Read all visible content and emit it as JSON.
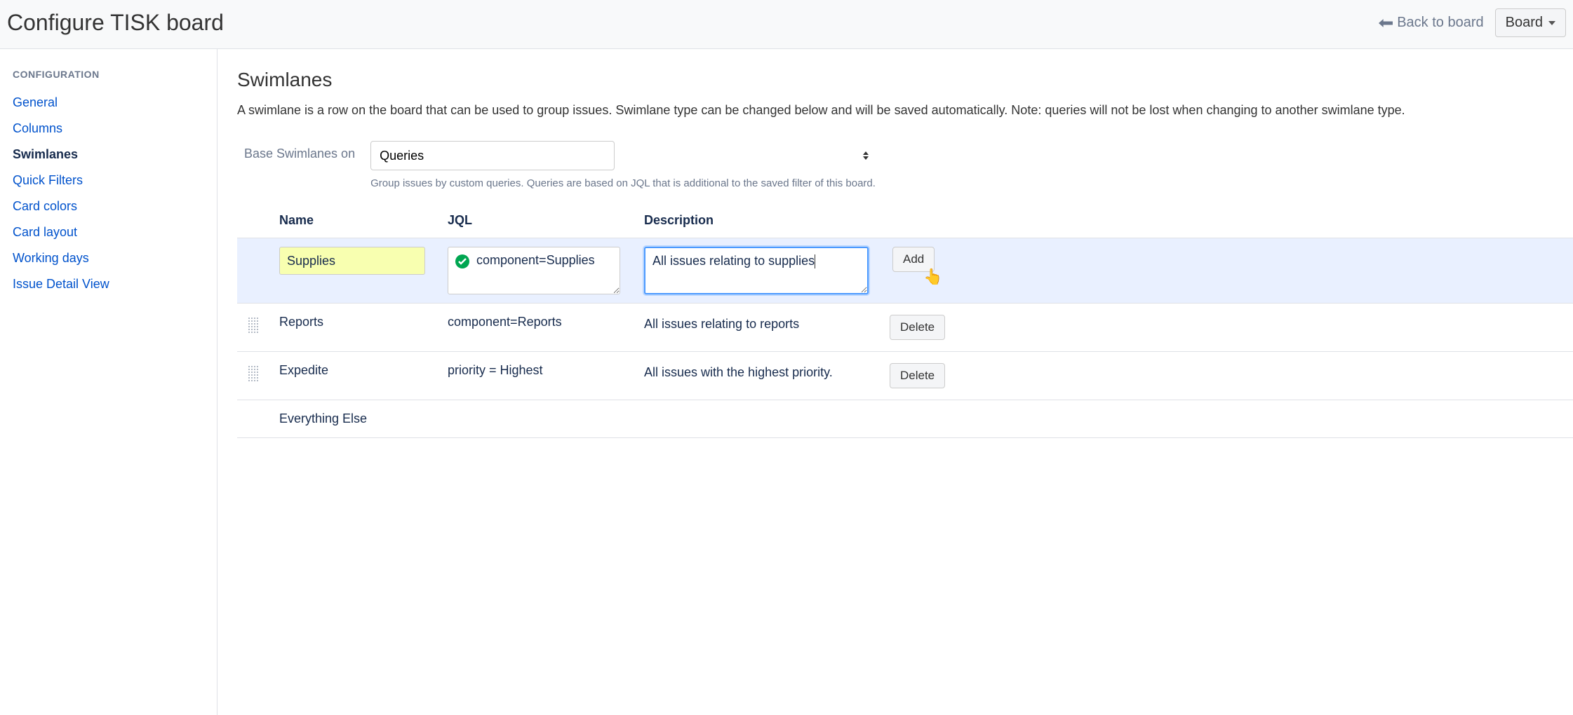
{
  "header": {
    "title": "Configure TISK board",
    "back_label": "Back to board",
    "board_button": "Board"
  },
  "sidebar": {
    "heading": "CONFIGURATION",
    "items": [
      {
        "label": "General",
        "active": false
      },
      {
        "label": "Columns",
        "active": false
      },
      {
        "label": "Swimlanes",
        "active": true
      },
      {
        "label": "Quick Filters",
        "active": false
      },
      {
        "label": "Card colors",
        "active": false
      },
      {
        "label": "Card layout",
        "active": false
      },
      {
        "label": "Working days",
        "active": false
      },
      {
        "label": "Issue Detail View",
        "active": false
      }
    ]
  },
  "main": {
    "title": "Swimlanes",
    "description": "A swimlane is a row on the board that can be used to group issues. Swimlane type can be changed below and will be saved automatically. Note: queries will not be lost when changing to another swimlane type.",
    "basis": {
      "label": "Base Swimlanes on",
      "selected": "Queries",
      "help": "Group issues by custom queries. Queries are based on JQL that is additional to the saved filter of this board."
    },
    "table": {
      "headers": {
        "name": "Name",
        "jql": "JQL",
        "description": "Description"
      },
      "add_row": {
        "name": "Supplies",
        "jql": "component=Supplies",
        "description": "All issues relating to supplies",
        "action_label": "Add"
      },
      "rows": [
        {
          "name": "Reports",
          "jql": "component=Reports",
          "description": "All issues relating to reports",
          "action_label": "Delete"
        },
        {
          "name": "Expedite",
          "jql": "priority = Highest",
          "description": "All issues with the highest priority.",
          "action_label": "Delete"
        },
        {
          "name": "Everything Else",
          "jql": "",
          "description": "",
          "action_label": ""
        }
      ]
    }
  },
  "colors": {
    "link": "#0052cc",
    "muted": "#6b778c",
    "highlight_bg": "#e9f0ff",
    "name_input_bg": "#f8ffb0",
    "focus_border": "#4c9aff",
    "success": "#00a651"
  }
}
